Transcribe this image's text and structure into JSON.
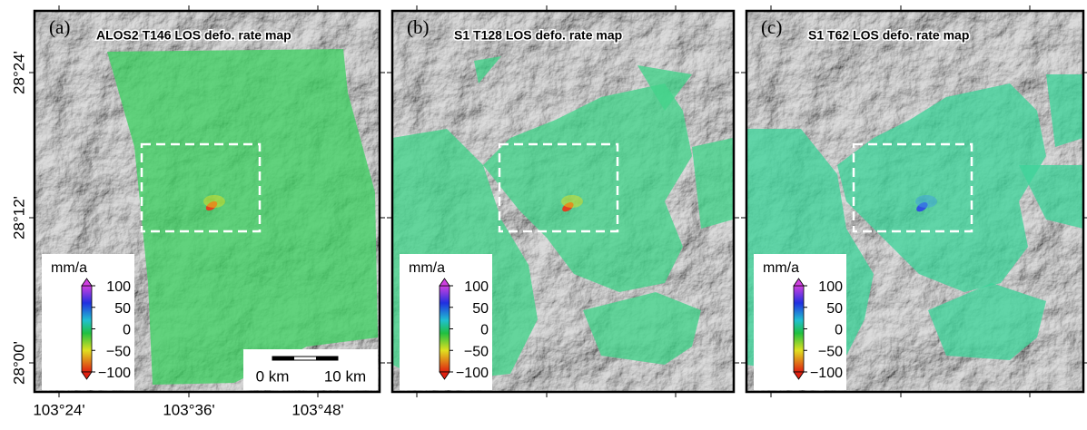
{
  "panels": [
    {
      "label": "(a)",
      "title": "ALOS2 T146 LOS defo. rate map",
      "unit": "mm/a",
      "ticks": [
        "100",
        "50",
        "0",
        "−50",
        "−100"
      ]
    },
    {
      "label": "(b)",
      "title": "S1 T128 LOS defo. rate map",
      "unit": "mm/a",
      "ticks": [
        "100",
        "50",
        "0",
        "−50",
        "−100"
      ]
    },
    {
      "label": "(c)",
      "title": "S1 T62 LOS defo. rate map",
      "unit": "mm/a",
      "ticks": [
        "100",
        "50",
        "0",
        "−50",
        "−100"
      ]
    }
  ],
  "y_axis_labels": [
    "28°24'",
    "28°12'",
    "28°00'"
  ],
  "x_axis_labels": [
    "103°24'",
    "103°36'",
    "103°48'"
  ],
  "scale_bar": [
    "0 km",
    "10 km"
  ]
}
